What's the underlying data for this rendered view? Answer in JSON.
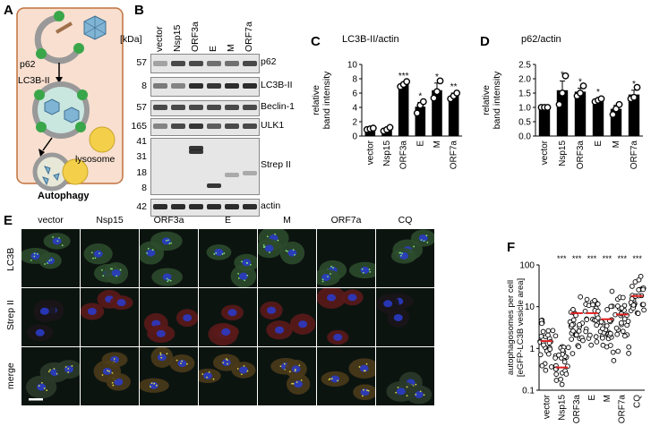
{
  "panel_labels": [
    "A",
    "B",
    "C",
    "D",
    "E",
    "F"
  ],
  "panel_a": {
    "labels": {
      "p62": "p62",
      "lc3": "LC3B-II",
      "lysosome": "lysosome",
      "title": "Autophagy"
    },
    "colors": {
      "bg": "#f8dfcf",
      "border": "#c0723d",
      "green": "#3aa64a",
      "yellow": "#f4d04a",
      "virus": "#7fb4d4"
    }
  },
  "panel_b": {
    "kda_label": "[kDa]",
    "lanes": [
      "vector",
      "Nsp15",
      "ORF3a",
      "E",
      "M",
      "ORF7a"
    ],
    "blots": [
      {
        "name": "p62",
        "markers": [
          "57"
        ]
      },
      {
        "name": "LC3B-II",
        "markers": [
          "8"
        ]
      },
      {
        "name": "Beclin-1",
        "markers": [
          "57"
        ]
      },
      {
        "name": "ULK1",
        "markers": [
          "165"
        ]
      },
      {
        "name": "Strep II",
        "markers": [
          "41",
          "31",
          "18",
          "8"
        ]
      },
      {
        "name": "actin",
        "markers": [
          "42"
        ]
      }
    ]
  },
  "panel_c": {
    "chart_data": {
      "type": "bar",
      "title": "LC3B-II/actin",
      "ylabel": "relative band intensity",
      "categories": [
        "vector",
        "Nsp15",
        "ORF3a",
        "E",
        "M",
        "ORF7a"
      ],
      "values": [
        1.0,
        0.95,
        7.2,
        4.1,
        6.4,
        5.6
      ],
      "errors": [
        0.1,
        0.2,
        0.3,
        0.6,
        1.0,
        0.4
      ],
      "points": [
        [
          0.9,
          1.0,
          1.1
        ],
        [
          0.7,
          0.9,
          1.2
        ],
        [
          6.9,
          7.2,
          7.6
        ],
        [
          3.2,
          4.3,
          4.8
        ],
        [
          5.3,
          6.2,
          7.7
        ],
        [
          5.2,
          5.6,
          6.0
        ]
      ],
      "significance": [
        "",
        "",
        "***",
        "*",
        "*",
        "**"
      ],
      "yticks": [
        "0",
        "2",
        "4",
        "6",
        "8",
        "10"
      ],
      "ylim": [
        0,
        10
      ]
    }
  },
  "panel_d": {
    "chart_data": {
      "type": "bar",
      "title": "p62/actin",
      "ylabel": "relative band intensity",
      "categories": [
        "vector",
        "Nsp15",
        "ORF3a",
        "E",
        "M",
        "ORF7a"
      ],
      "values": [
        1.0,
        1.6,
        1.55,
        1.25,
        0.95,
        1.45
      ],
      "errors": [
        0.02,
        0.32,
        0.12,
        0.06,
        0.12,
        0.15
      ],
      "points": [
        [
          1.0,
          1.0,
          1.0
        ],
        [
          1.1,
          1.5,
          2.1
        ],
        [
          1.4,
          1.5,
          1.75
        ],
        [
          1.2,
          1.25,
          1.3
        ],
        [
          0.75,
          0.95,
          1.1
        ],
        [
          1.3,
          1.35,
          1.7
        ]
      ],
      "significance": [
        "",
        "*",
        "*",
        "*",
        "",
        "*"
      ],
      "yticks": [
        "0.0",
        "0.5",
        "1.0",
        "1.5",
        "2.0",
        "2.5"
      ],
      "ylim": [
        0,
        2.5
      ]
    }
  },
  "panel_e": {
    "columns": [
      "vector",
      "Nsp15",
      "ORF3a",
      "E",
      "M",
      "ORF7a",
      "CQ"
    ],
    "rows": [
      "LC3B",
      "Strep II",
      "merge"
    ]
  },
  "panel_f": {
    "chart_data": {
      "type": "scatter",
      "ylabel": "autophagosomes per cell [eGFP-LC3B vesicle area]",
      "yscale": "log",
      "categories": [
        "vector",
        "Nsp15",
        "ORF3a",
        "E",
        "M",
        "ORF7a",
        "CQ"
      ],
      "medians": [
        1.5,
        0.35,
        7.0,
        7.0,
        5.0,
        6.5,
        18.0
      ],
      "spread_low": [
        0.12,
        0.12,
        0.25,
        0.9,
        0.15,
        0.6,
        3.0
      ],
      "spread_high": [
        10.0,
        3.0,
        40.0,
        30.0,
        40.0,
        40.0,
        80.0
      ],
      "significance": [
        "",
        "***",
        "***",
        "***",
        "***",
        "***",
        "***"
      ],
      "yticks": [
        "0.1",
        "1",
        "10",
        "100"
      ],
      "ylim": [
        0.1,
        100
      ]
    }
  }
}
